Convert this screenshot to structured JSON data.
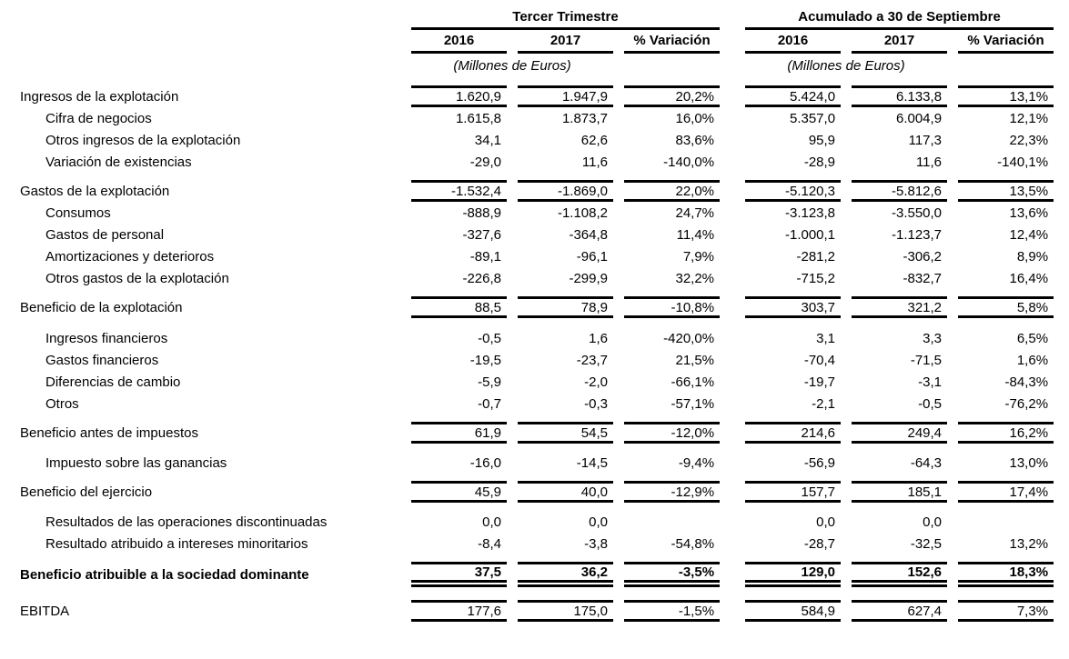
{
  "header": {
    "group_q3": "Tercer Trimestre",
    "group_ytd": "Acumulado a 30 de Septiembre",
    "col_2016": "2016",
    "col_2017": "2017",
    "col_var": "% Variación",
    "units": "(Millones de Euros)"
  },
  "rows": [
    {
      "label": "Ingresos de la explotación",
      "role": "section",
      "q2016": "1.620,9",
      "q2017": "1.947,9",
      "qvar": "20,2%",
      "a2016": "5.424,0",
      "a2017": "6.133,8",
      "avar": "13,1%"
    },
    {
      "label": "Cifra de negocios",
      "role": "detail",
      "q2016": "1.615,8",
      "q2017": "1.873,7",
      "qvar": "16,0%",
      "a2016": "5.357,0",
      "a2017": "6.004,9",
      "avar": "12,1%"
    },
    {
      "label": "Otros ingresos de la explotación",
      "role": "detail",
      "q2016": "34,1",
      "q2017": "62,6",
      "qvar": "83,6%",
      "a2016": "95,9",
      "a2017": "117,3",
      "avar": "22,3%"
    },
    {
      "label": "Variación de existencias",
      "role": "detail",
      "q2016": "-29,0",
      "q2017": "11,6",
      "qvar": "-140,0%",
      "a2016": "-28,9",
      "a2017": "11,6",
      "avar": "-140,1%"
    },
    {
      "label": "Gastos de la explotación",
      "role": "section",
      "q2016": "-1.532,4",
      "q2017": "-1.869,0",
      "qvar": "22,0%",
      "a2016": "-5.120,3",
      "a2017": "-5.812,6",
      "avar": "13,5%"
    },
    {
      "label": "Consumos",
      "role": "detail",
      "q2016": "-888,9",
      "q2017": "-1.108,2",
      "qvar": "24,7%",
      "a2016": "-3.123,8",
      "a2017": "-3.550,0",
      "avar": "13,6%"
    },
    {
      "label": "Gastos de personal",
      "role": "detail",
      "q2016": "-327,6",
      "q2017": "-364,8",
      "qvar": "11,4%",
      "a2016": "-1.000,1",
      "a2017": "-1.123,7",
      "avar": "12,4%"
    },
    {
      "label": "Amortizaciones y deterioros",
      "role": "detail",
      "q2016": "-89,1",
      "q2017": "-96,1",
      "qvar": "7,9%",
      "a2016": "-281,2",
      "a2017": "-306,2",
      "avar": "8,9%"
    },
    {
      "label": "Otros gastos de la explotación",
      "role": "detail",
      "q2016": "-226,8",
      "q2017": "-299,9",
      "qvar": "32,2%",
      "a2016": "-715,2",
      "a2017": "-832,7",
      "avar": "16,4%"
    },
    {
      "label": "Beneficio de la explotación",
      "role": "section",
      "q2016": "88,5",
      "q2017": "78,9",
      "qvar": "-10,8%",
      "a2016": "303,7",
      "a2017": "321,2",
      "avar": "5,8%"
    },
    {
      "label": "Ingresos financieros",
      "role": "detail",
      "q2016": "-0,5",
      "q2017": "1,6",
      "qvar": "-420,0%",
      "a2016": "3,1",
      "a2017": "3,3",
      "avar": "6,5%"
    },
    {
      "label": "Gastos financieros",
      "role": "detail",
      "q2016": "-19,5",
      "q2017": "-23,7",
      "qvar": "21,5%",
      "a2016": "-70,4",
      "a2017": "-71,5",
      "avar": "1,6%"
    },
    {
      "label": "Diferencias de cambio",
      "role": "detail",
      "q2016": "-5,9",
      "q2017": "-2,0",
      "qvar": "-66,1%",
      "a2016": "-19,7",
      "a2017": "-3,1",
      "avar": "-84,3%"
    },
    {
      "label": "Otros",
      "role": "detail",
      "q2016": "-0,7",
      "q2017": "-0,3",
      "qvar": "-57,1%",
      "a2016": "-2,1",
      "a2017": "-0,5",
      "avar": "-76,2%"
    },
    {
      "label": "Beneficio antes de impuestos",
      "role": "section",
      "q2016": "61,9",
      "q2017": "54,5",
      "qvar": "-12,0%",
      "a2016": "214,6",
      "a2017": "249,4",
      "avar": "16,2%"
    },
    {
      "label": "Impuesto sobre las ganancias",
      "role": "detail",
      "q2016": "-16,0",
      "q2017": "-14,5",
      "qvar": "-9,4%",
      "a2016": "-56,9",
      "a2017": "-64,3",
      "avar": "13,0%"
    },
    {
      "label": "Beneficio del ejercicio",
      "role": "section",
      "q2016": "45,9",
      "q2017": "40,0",
      "qvar": "-12,9%",
      "a2016": "157,7",
      "a2017": "185,1",
      "avar": "17,4%"
    },
    {
      "label": "Resultados de las operaciones discontinuadas",
      "role": "detail",
      "q2016": "0,0",
      "q2017": "0,0",
      "qvar": "",
      "a2016": "0,0",
      "a2017": "0,0",
      "avar": ""
    },
    {
      "label": "Resultado atribuido a intereses minoritarios",
      "role": "detail",
      "q2016": "-8,4",
      "q2017": "-3,8",
      "qvar": "-54,8%",
      "a2016": "-28,7",
      "a2017": "-32,5",
      "avar": "13,2%"
    },
    {
      "label": "Beneficio atribuible a la sociedad dominante",
      "role": "total",
      "q2016": "37,5",
      "q2017": "36,2",
      "qvar": "-3,5%",
      "a2016": "129,0",
      "a2017": "152,6",
      "avar": "18,3%"
    },
    {
      "label": "EBITDA",
      "role": "ebitda",
      "q2016": "177,6",
      "q2017": "175,0",
      "qvar": "-1,5%",
      "a2016": "584,9",
      "a2017": "627,4",
      "avar": "7,3%"
    }
  ]
}
